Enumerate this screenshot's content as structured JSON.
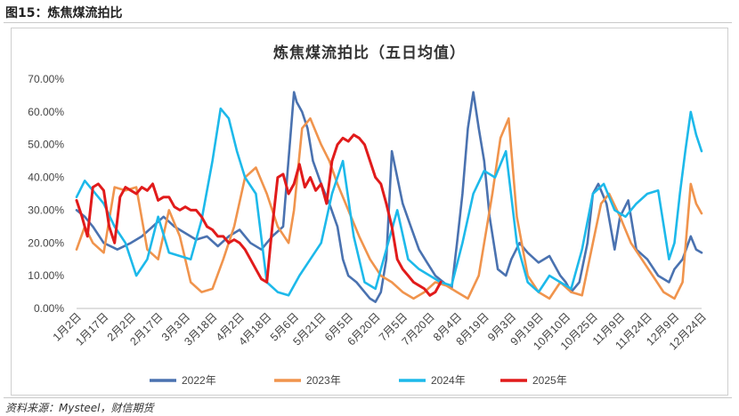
{
  "figure": {
    "title": "图15：炼焦煤流拍比",
    "source": "资料来源：Mysteel，财信期货"
  },
  "chart_data": {
    "type": "line",
    "title": "炼焦煤流拍比（五日均值）",
    "xlabel": "",
    "ylabel": "",
    "ylim": [
      0,
      70
    ],
    "y_ticks": [
      "0.00%",
      "10.00%",
      "20.00%",
      "30.00%",
      "40.00%",
      "50.00%",
      "60.00%",
      "70.00%"
    ],
    "x_tick_labels": [
      "1月2日",
      "1月17日",
      "2月2日",
      "2月17日",
      "3月3日",
      "3月18日",
      "4月2日",
      "4月18日",
      "5月6日",
      "5月21日",
      "6月5日",
      "6月20日",
      "7月5日",
      "7月20日",
      "8月4日",
      "8月19日",
      "9月3日",
      "9月19日",
      "10月10日",
      "10月25日",
      "11月9日",
      "11月24日",
      "12月9日",
      "12月24日"
    ],
    "x_range": [
      0,
      23
    ],
    "grid": false,
    "legend_position": "bottom",
    "series": [
      {
        "name": "2022年",
        "color": "#4a72b0",
        "x": [
          0,
          0.3,
          0.6,
          1.0,
          1.5,
          2.0,
          2.4,
          2.8,
          3.2,
          3.6,
          4.0,
          4.4,
          4.8,
          5.2,
          5.6,
          6.0,
          6.4,
          6.8,
          7.2,
          7.6,
          8.0,
          8.1,
          8.3,
          8.5,
          8.7,
          9.0,
          9.3,
          9.6,
          9.8,
          10.0,
          10.3,
          10.6,
          10.8,
          11.0,
          11.2,
          11.4,
          11.6,
          11.8,
          12.0,
          12.3,
          12.6,
          12.9,
          13.2,
          13.5,
          13.8,
          14.0,
          14.2,
          14.4,
          14.6,
          14.8,
          15.0,
          15.2,
          15.5,
          15.8,
          16.0,
          16.3,
          16.6,
          17.0,
          17.4,
          17.8,
          18.0,
          18.2,
          18.5,
          18.8,
          19.0,
          19.2,
          19.5,
          19.8,
          20.0,
          20.3,
          20.6,
          21.0,
          21.4,
          21.8,
          22.0,
          22.3,
          22.6,
          22.8,
          23.0
        ],
        "values": [
          30,
          28,
          25,
          20,
          18,
          20,
          22,
          25,
          28,
          25,
          23,
          21,
          22,
          19,
          22,
          24,
          20,
          18,
          22,
          25,
          66,
          63,
          60,
          55,
          45,
          38,
          32,
          25,
          15,
          10,
          8,
          5,
          3,
          2,
          5,
          15,
          48,
          40,
          32,
          25,
          18,
          14,
          10,
          8,
          6,
          20,
          35,
          55,
          66,
          55,
          45,
          28,
          12,
          10,
          15,
          20,
          17,
          14,
          16,
          10,
          8,
          5,
          8,
          20,
          35,
          38,
          32,
          18,
          28,
          33,
          18,
          15,
          10,
          8,
          12,
          15,
          22,
          18,
          17
        ]
      },
      {
        "name": "2023年",
        "color": "#f0944d",
        "x": [
          0,
          0.3,
          0.6,
          1.0,
          1.4,
          1.8,
          2.2,
          2.6,
          3.0,
          3.4,
          3.8,
          4.2,
          4.6,
          5.0,
          5.4,
          5.8,
          6.2,
          6.6,
          7.0,
          7.4,
          7.8,
          8.0,
          8.3,
          8.6,
          9.0,
          9.3,
          9.6,
          10.0,
          10.4,
          10.8,
          11.2,
          11.6,
          12.0,
          12.4,
          12.8,
          13.2,
          13.6,
          14.0,
          14.4,
          14.8,
          15.0,
          15.3,
          15.6,
          15.9,
          16.2,
          16.6,
          17.0,
          17.4,
          17.8,
          18.2,
          18.6,
          19.0,
          19.3,
          19.6,
          20.0,
          20.4,
          20.8,
          21.2,
          21.6,
          22.0,
          22.3,
          22.6,
          22.8,
          23.0
        ],
        "values": [
          18,
          25,
          20,
          17,
          37,
          36,
          37,
          18,
          15,
          30,
          22,
          8,
          5,
          6,
          15,
          25,
          40,
          43,
          35,
          25,
          20,
          30,
          55,
          58,
          50,
          45,
          38,
          30,
          22,
          15,
          10,
          8,
          5,
          3,
          5,
          8,
          7,
          5,
          3,
          10,
          20,
          35,
          52,
          58,
          28,
          10,
          5,
          3,
          8,
          5,
          4,
          20,
          32,
          35,
          28,
          20,
          15,
          10,
          5,
          3,
          8,
          38,
          32,
          29
        ]
      },
      {
        "name": "2024年",
        "color": "#1db9ea",
        "x": [
          0,
          0.3,
          0.6,
          1.0,
          1.4,
          1.8,
          2.2,
          2.6,
          3.0,
          3.4,
          3.8,
          4.2,
          4.6,
          5.0,
          5.3,
          5.6,
          5.9,
          6.2,
          6.6,
          7.0,
          7.4,
          7.8,
          8.2,
          8.6,
          9.0,
          9.4,
          9.8,
          10.2,
          10.6,
          11.0,
          11.4,
          11.8,
          12.2,
          12.6,
          13.0,
          13.4,
          13.8,
          14.2,
          14.6,
          15.0,
          15.4,
          15.8,
          16.2,
          16.6,
          17.0,
          17.4,
          17.8,
          18.2,
          18.6,
          19.0,
          19.4,
          19.8,
          20.2,
          20.6,
          21.0,
          21.4,
          21.8,
          22.0,
          22.2,
          22.4,
          22.6,
          22.8,
          23.0
        ],
        "values": [
          34,
          39,
          36,
          32,
          25,
          20,
          10,
          15,
          28,
          17,
          16,
          15,
          27,
          45,
          61,
          58,
          48,
          40,
          35,
          8,
          5,
          4,
          10,
          15,
          20,
          35,
          45,
          22,
          8,
          6,
          18,
          30,
          15,
          12,
          10,
          8,
          7,
          20,
          35,
          42,
          40,
          48,
          20,
          8,
          5,
          10,
          8,
          6,
          18,
          35,
          38,
          30,
          28,
          32,
          35,
          36,
          15,
          20,
          35,
          48,
          60,
          53,
          48
        ]
      },
      {
        "name": "2025年",
        "color": "#e11b1b",
        "x": [
          0,
          0.2,
          0.4,
          0.6,
          0.8,
          1.0,
          1.2,
          1.4,
          1.6,
          1.8,
          2.0,
          2.2,
          2.4,
          2.6,
          2.8,
          3.0,
          3.2,
          3.4,
          3.6,
          3.8,
          4.0,
          4.2,
          4.4,
          4.6,
          4.8,
          5.0,
          5.2,
          5.4,
          5.6,
          5.8,
          6.0,
          6.2,
          6.4,
          6.6,
          6.8,
          7.0,
          7.2,
          7.4,
          7.6,
          7.8,
          8.0,
          8.2,
          8.4,
          8.6,
          8.8,
          9.0,
          9.2,
          9.4,
          9.6,
          9.8,
          10.0,
          10.2,
          10.4,
          10.6,
          10.8,
          11.0,
          11.2,
          11.4,
          11.6,
          11.8,
          12.0,
          12.2,
          12.4,
          12.6,
          12.8,
          13.0,
          13.2,
          13.4
        ],
        "values": [
          33,
          28,
          22,
          37,
          38,
          36,
          25,
          20,
          34,
          37,
          36,
          35,
          37,
          36,
          38,
          33,
          34,
          34,
          31,
          30,
          31,
          30,
          30,
          28,
          25,
          24,
          22,
          22,
          20,
          21,
          20,
          18,
          15,
          12,
          9,
          8,
          25,
          40,
          41,
          35,
          38,
          44,
          37,
          40,
          36,
          38,
          32,
          45,
          50,
          52,
          51,
          53,
          52,
          50,
          45,
          40,
          38,
          32,
          25,
          15,
          12,
          10,
          8,
          7,
          6,
          4,
          5,
          8
        ]
      }
    ]
  }
}
